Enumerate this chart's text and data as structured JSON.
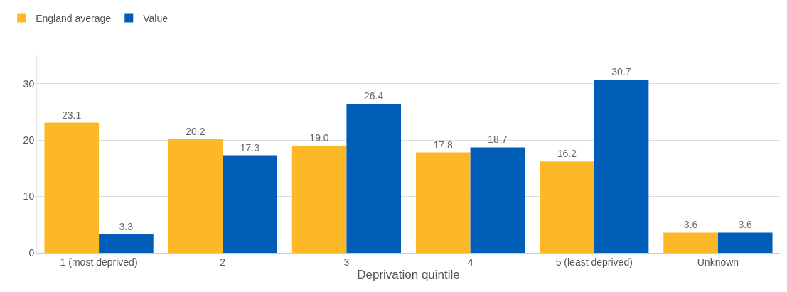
{
  "chart_data": {
    "type": "bar",
    "xlabel": "Deprivation quintile",
    "categories": [
      "1 (most deprived)",
      "2",
      "3",
      "4",
      "5 (least deprived)",
      "Unknown"
    ],
    "series": [
      {
        "name": "England average",
        "color": "#fdb827",
        "values": [
          23.1,
          20.2,
          19.0,
          17.8,
          16.2,
          3.6
        ]
      },
      {
        "name": "Value",
        "color": "#005eb8",
        "values": [
          3.3,
          17.3,
          26.4,
          18.7,
          30.7,
          3.6
        ]
      }
    ],
    "value_labels": [
      [
        "23.1",
        "20.2",
        "19.0",
        "17.8",
        "16.2",
        "3.6"
      ],
      [
        "3.3",
        "17.3",
        "26.4",
        "18.7",
        "30.7",
        "3.6"
      ]
    ],
    "ylim": [
      0,
      35
    ],
    "yticks": [
      0,
      10,
      20,
      30
    ],
    "grid": "y",
    "legend": "top left"
  }
}
